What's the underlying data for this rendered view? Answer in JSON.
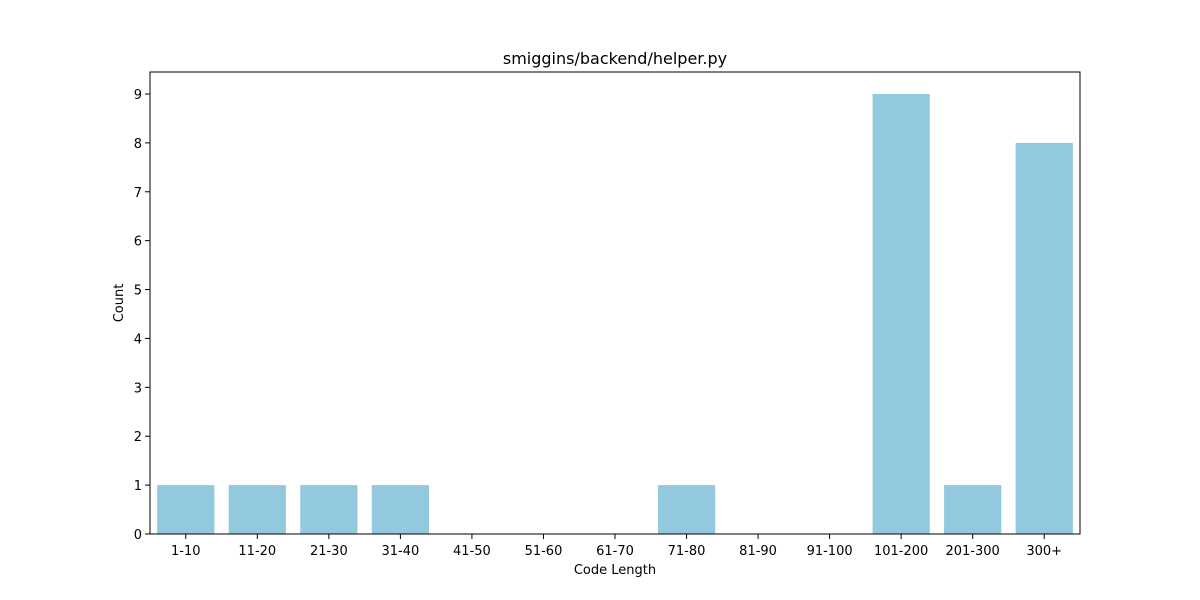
{
  "chart_data": {
    "type": "bar",
    "title": "smiggins/backend/helper.py",
    "xlabel": "Code Length",
    "ylabel": "Count",
    "categories": [
      "1-10",
      "11-20",
      "21-30",
      "31-40",
      "41-50",
      "51-60",
      "61-70",
      "71-80",
      "81-90",
      "91-100",
      "101-200",
      "201-300",
      "300+"
    ],
    "values": [
      1,
      1,
      1,
      1,
      0,
      0,
      0,
      1,
      0,
      0,
      9,
      1,
      8
    ],
    "ylim": [
      0,
      9.45
    ],
    "yticks": [
      0,
      1,
      2,
      3,
      4,
      5,
      6,
      7,
      8,
      9
    ],
    "grid": false,
    "legend": "none",
    "bar_color": "#92c9df"
  }
}
